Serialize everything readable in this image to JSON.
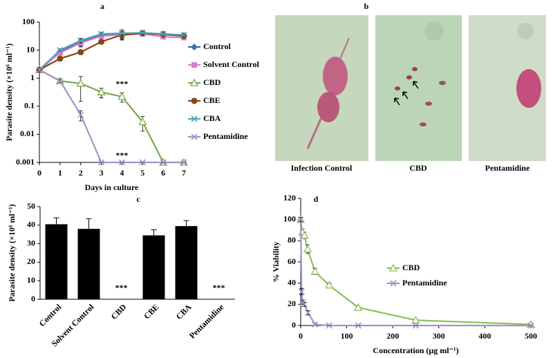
{
  "chart_data": [
    {
      "type": "line",
      "title": "a",
      "xlabel": "Days in culture",
      "ylabel": "Parasite density (×10⁶ ml⁻¹)",
      "log_scale": true,
      "legend": "right",
      "x": [
        0,
        1,
        2,
        3,
        4,
        5,
        6,
        7
      ],
      "xlim": [
        0,
        7
      ],
      "xticks": [
        0,
        1,
        2,
        3,
        4,
        5,
        6,
        7
      ],
      "ylim": [
        0.001,
        100
      ],
      "yticks": [
        0.001,
        0.01,
        0.1,
        1,
        10,
        100
      ],
      "series": [
        {
          "name": "Control",
          "color": "#3d6db5",
          "marker": "diamond",
          "values": [
            2,
            9,
            20,
            35,
            38,
            40,
            38,
            33
          ],
          "errors": [
            0,
            1,
            6,
            5,
            15,
            5,
            4,
            4
          ]
        },
        {
          "name": "Solvent Control",
          "color": "#e07bd0",
          "marker": "square",
          "values": [
            2,
            8,
            18,
            32,
            35,
            38,
            30,
            28
          ],
          "errors": [
            0,
            1,
            5,
            4,
            8,
            5,
            4,
            3
          ]
        },
        {
          "name": "CBD",
          "color": "#7aab4a",
          "marker": "triangle",
          "values": [
            2,
            0.8,
            0.65,
            0.32,
            0.22,
            0.028,
            0.001,
            0.001
          ],
          "errors": [
            0,
            0.1,
            0.5,
            0.12,
            0.08,
            0.015,
            0,
            0
          ]
        },
        {
          "name": "CBE",
          "color": "#8b4513",
          "marker": "circle",
          "values": [
            2,
            5,
            8.5,
            20,
            35,
            40,
            36,
            32
          ],
          "errors": [
            0,
            0.8,
            1.5,
            3,
            10,
            5,
            4,
            3
          ]
        },
        {
          "name": "CBA",
          "color": "#4aa6b8",
          "marker": "x",
          "values": [
            2,
            10,
            22,
            38,
            40,
            42,
            38,
            35
          ],
          "errors": [
            0,
            1,
            4,
            4,
            6,
            5,
            4,
            4
          ]
        },
        {
          "name": "Pentamidine",
          "color": "#a591c8",
          "marker": "x",
          "values": [
            2,
            0.8,
            0.05,
            0.001,
            0.001,
            0.001,
            0.001,
            0.001
          ],
          "errors": [
            0,
            0.1,
            0.02,
            0,
            0,
            0,
            0,
            0
          ]
        }
      ],
      "annotations": [
        {
          "text": "***",
          "x": 4,
          "y": 0.6
        },
        {
          "text": "***",
          "x": 4,
          "y": 0.0017
        }
      ]
    },
    {
      "type": "bar",
      "title": "c",
      "ylabel": "Parasite density (×10⁶ ml⁻¹)",
      "color": "#000000",
      "categories": [
        "Control",
        "Solvent Control",
        "CBD",
        "CBE",
        "CBA",
        "Pentamidine"
      ],
      "values": [
        40.5,
        38,
        0,
        34.5,
        39.5,
        0
      ],
      "errors": [
        3.5,
        5.5,
        0,
        3,
        3,
        0
      ],
      "ylim": [
        0,
        50
      ],
      "yticks": [
        0,
        10,
        20,
        30,
        40,
        50
      ],
      "annotations": [
        {
          "text": "***",
          "x": "CBD"
        },
        {
          "text": "***",
          "x": "Pentamidine"
        }
      ]
    },
    {
      "type": "line",
      "title": "d",
      "xlabel": "Concentration (µg ml⁻¹)",
      "ylabel": "% Viability",
      "log_scale": false,
      "legend": "right",
      "xlim": [
        0,
        500
      ],
      "xticks": [
        0,
        100,
        200,
        300,
        400,
        500
      ],
      "ylim": [
        0,
        120
      ],
      "yticks": [
        0,
        20,
        40,
        60,
        80,
        100,
        120
      ],
      "series": [
        {
          "name": "CBD",
          "color": "#8cbf5a",
          "marker": "triangle",
          "x": [
            0,
            4,
            8,
            15,
            31,
            62,
            125,
            250,
            500
          ],
          "values": [
            100,
            88,
            85,
            72,
            51,
            38,
            17,
            5,
            1
          ],
          "errors": [
            2,
            3,
            3,
            4,
            3,
            2,
            1,
            1,
            1
          ]
        },
        {
          "name": "Pentamidine",
          "color": "#a591c8",
          "marker": "x",
          "x": [
            0,
            2,
            4,
            8,
            16,
            31,
            62,
            125,
            250,
            500
          ],
          "values": [
            100,
            32,
            22,
            20,
            12,
            1,
            0,
            0,
            0,
            0
          ],
          "errors": [
            2,
            3,
            2,
            2,
            2,
            1,
            0,
            0,
            0,
            0
          ]
        }
      ]
    }
  ],
  "images": {
    "label": "b",
    "captions": [
      "Infection Control",
      "CBD",
      "Pentamidine"
    ]
  }
}
